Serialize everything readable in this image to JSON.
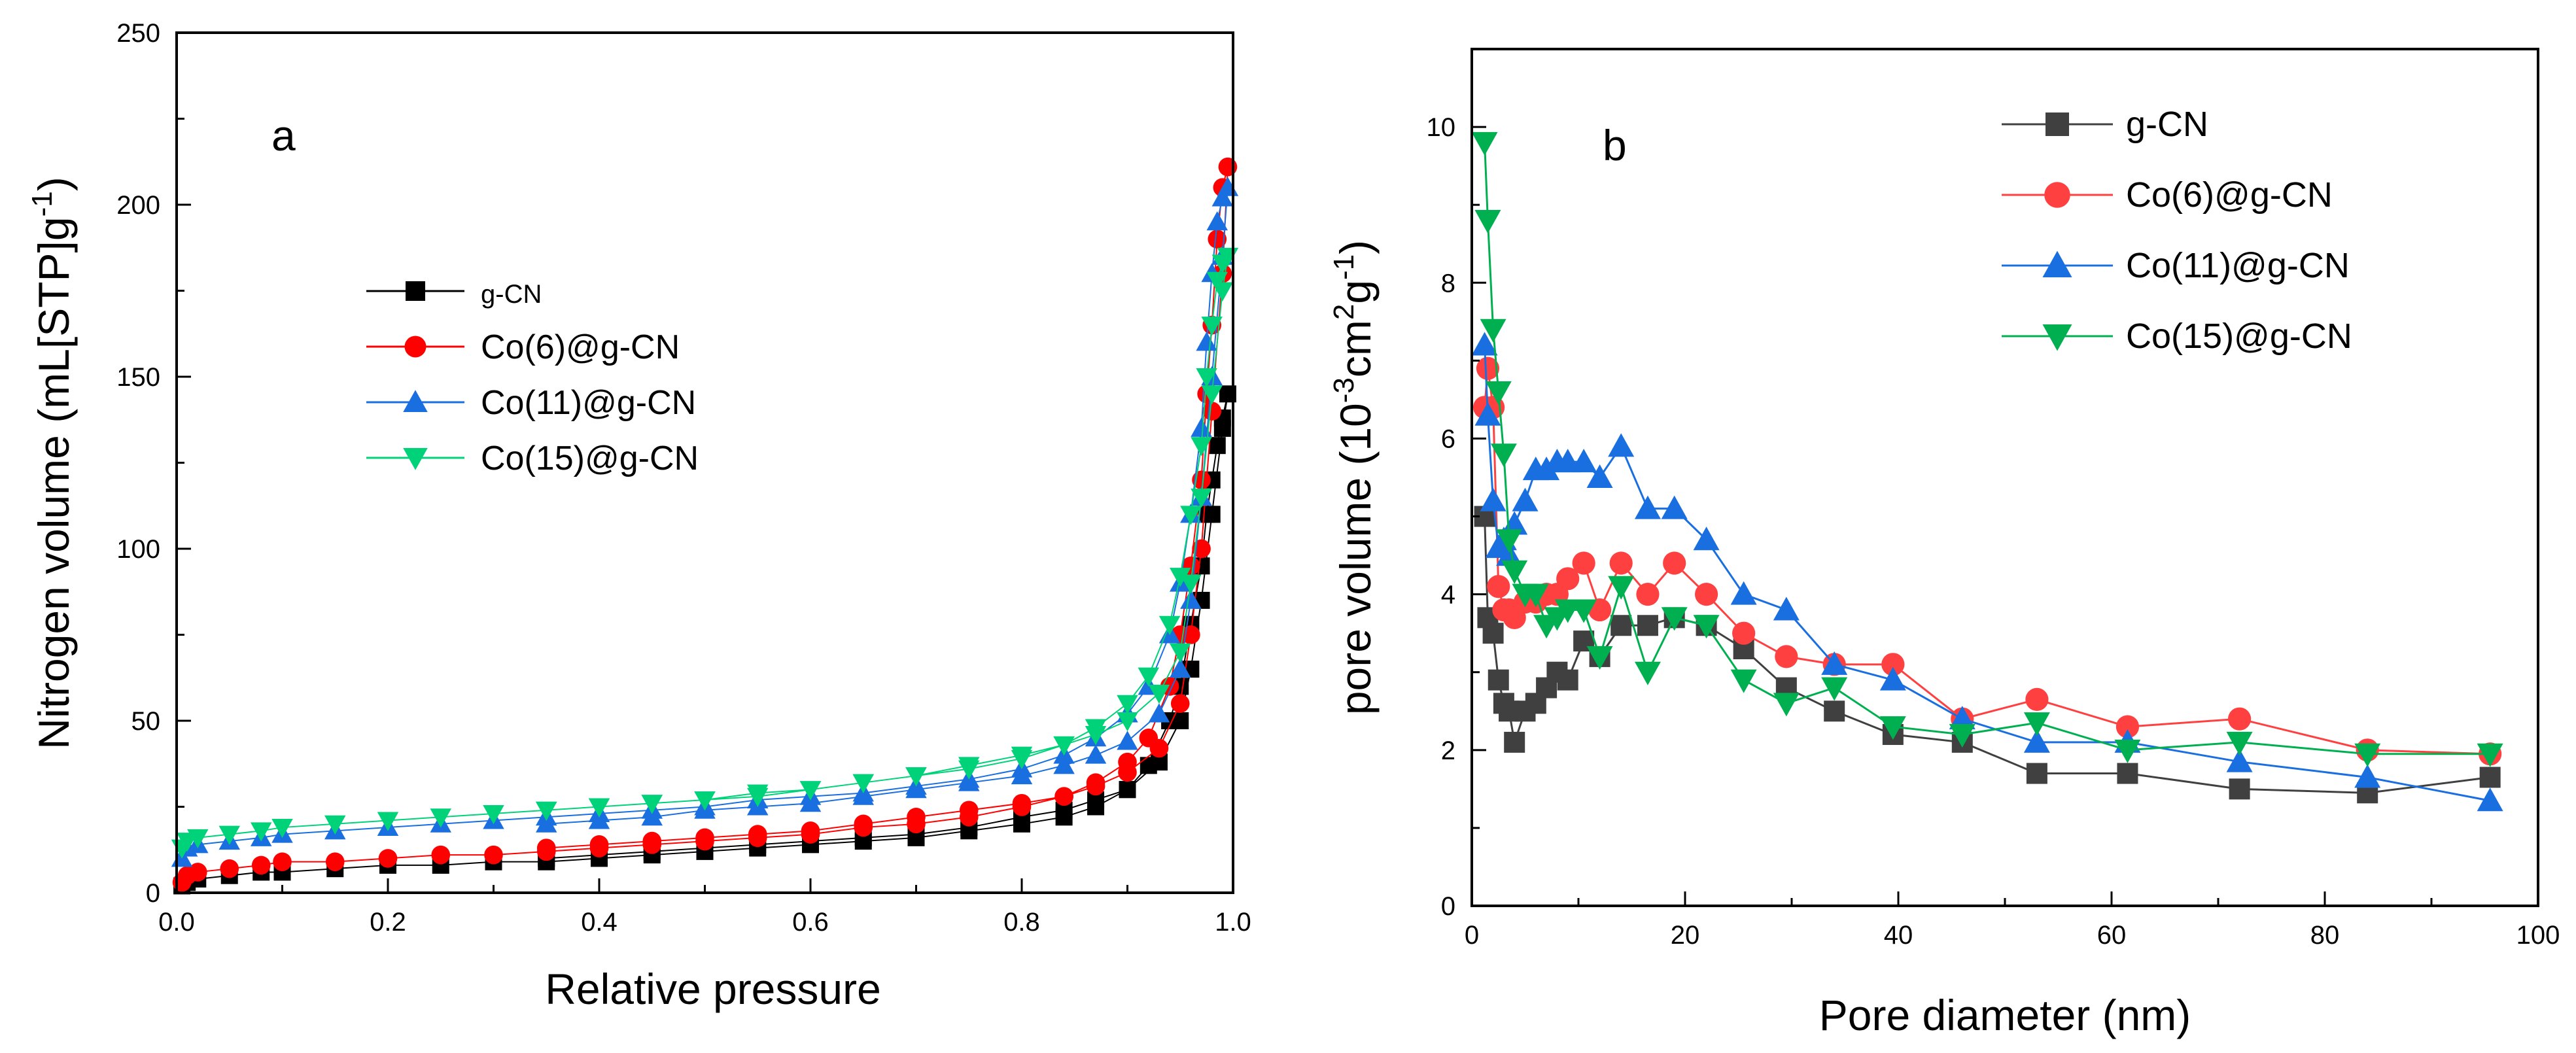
{
  "chart_data": [
    {
      "type": "scatter",
      "panel_label": "a",
      "xlabel": "Relative pressure",
      "ylabel": "Nitrogen volume (mL[STP]g-1)",
      "ylabel_parts": {
        "before": "Nitrogen volume (mL[STP]g",
        "sup": "-1",
        "after": ")"
      },
      "xlim": [
        0.0,
        1.0
      ],
      "ylim": [
        0,
        250
      ],
      "xticks": [
        "0.0",
        "0.2",
        "0.4",
        "0.6",
        "0.8",
        "1.0"
      ],
      "yticks": [
        "0",
        "50",
        "100",
        "150",
        "200",
        "250"
      ],
      "legend_position": "center-left",
      "series": [
        {
          "name": "g-CN",
          "color": "#000000",
          "marker": "square",
          "x": [
            0.005,
            0.01,
            0.02,
            0.05,
            0.08,
            0.1,
            0.15,
            0.2,
            0.25,
            0.3,
            0.35,
            0.4,
            0.45,
            0.5,
            0.55,
            0.6,
            0.65,
            0.7,
            0.75,
            0.8,
            0.84,
            0.87,
            0.9,
            0.92,
            0.94,
            0.95,
            0.96,
            0.97,
            0.975,
            0.98,
            0.985,
            0.99,
            0.995,
            0.99,
            0.98,
            0.97,
            0.96,
            0.95,
            0.93,
            0.9,
            0.87,
            0.84,
            0.8,
            0.75,
            0.7,
            0.65,
            0.6,
            0.55,
            0.5,
            0.45,
            0.4,
            0.35
          ],
          "y": [
            2,
            3,
            4,
            5,
            6,
            6,
            7,
            8,
            8,
            9,
            9,
            10,
            11,
            12,
            13,
            14,
            15,
            16,
            18,
            20,
            22,
            25,
            30,
            37,
            50,
            60,
            78,
            95,
            110,
            120,
            130,
            138,
            145,
            135,
            110,
            85,
            65,
            50,
            38,
            30,
            27,
            24,
            22,
            19,
            17,
            16,
            15,
            14,
            13,
            12,
            11,
            10
          ]
        },
        {
          "name": "Co(6)@g-CN",
          "color": "#ff0000",
          "marker": "circle",
          "x": [
            0.005,
            0.01,
            0.02,
            0.05,
            0.08,
            0.1,
            0.15,
            0.2,
            0.25,
            0.3,
            0.35,
            0.4,
            0.45,
            0.5,
            0.55,
            0.6,
            0.65,
            0.7,
            0.75,
            0.8,
            0.84,
            0.87,
            0.9,
            0.92,
            0.94,
            0.95,
            0.96,
            0.97,
            0.975,
            0.98,
            0.985,
            0.99,
            0.995,
            0.99,
            0.98,
            0.97,
            0.96,
            0.95,
            0.93,
            0.9,
            0.87,
            0.84,
            0.8,
            0.75,
            0.7,
            0.65,
            0.6,
            0.55,
            0.5,
            0.45,
            0.4,
            0.35
          ],
          "y": [
            3,
            5,
            6,
            7,
            8,
            9,
            9,
            10,
            11,
            11,
            12,
            13,
            14,
            15,
            16,
            17,
            19,
            20,
            22,
            25,
            28,
            32,
            38,
            45,
            60,
            75,
            95,
            120,
            145,
            165,
            190,
            205,
            211,
            180,
            140,
            100,
            75,
            55,
            42,
            35,
            31,
            28,
            26,
            24,
            22,
            20,
            18,
            17,
            16,
            15,
            14,
            13
          ]
        },
        {
          "name": "Co(11)@g-CN",
          "color": "#1a6fe0",
          "marker": "triangle-up",
          "x": [
            0.005,
            0.01,
            0.02,
            0.05,
            0.08,
            0.1,
            0.15,
            0.2,
            0.25,
            0.3,
            0.35,
            0.4,
            0.45,
            0.5,
            0.55,
            0.6,
            0.65,
            0.7,
            0.75,
            0.8,
            0.84,
            0.87,
            0.9,
            0.92,
            0.94,
            0.95,
            0.96,
            0.97,
            0.975,
            0.98,
            0.985,
            0.99,
            0.995,
            0.99,
            0.98,
            0.97,
            0.96,
            0.95,
            0.93,
            0.9,
            0.87,
            0.84,
            0.8,
            0.75,
            0.7,
            0.65,
            0.6,
            0.55,
            0.5,
            0.45,
            0.4,
            0.35
          ],
          "y": [
            10,
            13,
            14,
            15,
            16,
            17,
            18,
            19,
            20,
            21,
            22,
            23,
            24,
            25,
            27,
            28,
            29,
            31,
            33,
            36,
            40,
            45,
            52,
            60,
            75,
            90,
            110,
            135,
            160,
            180,
            195,
            202,
            205,
            185,
            150,
            115,
            85,
            65,
            52,
            44,
            40,
            37,
            34,
            32,
            30,
            28,
            26,
            25,
            24,
            22,
            21,
            20
          ]
        },
        {
          "name": "Co(15)@g-CN",
          "color": "#00d27a",
          "marker": "triangle-down",
          "x": [
            0.005,
            0.01,
            0.02,
            0.05,
            0.08,
            0.1,
            0.15,
            0.2,
            0.25,
            0.3,
            0.35,
            0.4,
            0.45,
            0.5,
            0.55,
            0.6,
            0.65,
            0.7,
            0.75,
            0.8,
            0.84,
            0.87,
            0.9,
            0.92,
            0.94,
            0.95,
            0.96,
            0.97,
            0.975,
            0.98,
            0.985,
            0.99,
            0.995,
            0.99,
            0.98,
            0.97,
            0.96,
            0.95,
            0.93,
            0.9,
            0.87,
            0.84,
            0.8,
            0.75,
            0.7,
            0.65,
            0.6,
            0.55,
            0.5,
            0.45,
            0.4,
            0.35
          ],
          "y": [
            13,
            15,
            16,
            17,
            18,
            19,
            20,
            21,
            22,
            23,
            24,
            25,
            26,
            27,
            29,
            30,
            32,
            34,
            36,
            39,
            43,
            48,
            55,
            63,
            78,
            92,
            110,
            130,
            150,
            165,
            178,
            183,
            185,
            175,
            145,
            115,
            90,
            70,
            58,
            50,
            46,
            43,
            40,
            37,
            34,
            32,
            30,
            28,
            27,
            26,
            25,
            24
          ]
        }
      ]
    },
    {
      "type": "line",
      "panel_label": "b",
      "xlabel": "Pore diameter (nm)",
      "ylabel": "pore volume (10-3cm2g-1)",
      "ylabel_parts": {
        "before": "pore volume (10",
        "sup1": "-3",
        "mid": "cm",
        "sup2": "2",
        "mid2": "g",
        "sup3": "-1",
        "after": ")"
      },
      "xlim": [
        0,
        100
      ],
      "ylim": [
        0,
        11
      ],
      "xticks": [
        "0",
        "20",
        "40",
        "60",
        "80",
        "100"
      ],
      "yticks": [
        "0",
        "2",
        "4",
        "6",
        "8",
        "10"
      ],
      "legend_position": "top-right",
      "series": [
        {
          "name": "g-CN",
          "color": "#404040",
          "marker": "square",
          "x": [
            1.2,
            1.5,
            2.0,
            2.5,
            3.0,
            3.5,
            4.0,
            5.0,
            6.0,
            7.0,
            8.0,
            9.0,
            10.5,
            12.0,
            14.0,
            16.5,
            19.0,
            22.0,
            25.5,
            29.5,
            34.0,
            39.5,
            46.0,
            53.0,
            61.5,
            72.0,
            84.0,
            95.5
          ],
          "y": [
            5.0,
            3.7,
            3.5,
            2.9,
            2.6,
            2.5,
            2.1,
            2.5,
            2.6,
            2.8,
            3.0,
            2.9,
            3.4,
            3.2,
            3.6,
            3.6,
            3.7,
            3.6,
            3.3,
            2.8,
            2.5,
            2.2,
            2.1,
            1.7,
            1.7,
            1.5,
            1.45,
            1.65
          ]
        },
        {
          "name": "Co(6)@g-CN",
          "color": "#ff4040",
          "marker": "circle",
          "x": [
            1.2,
            1.5,
            2.0,
            2.5,
            3.0,
            3.5,
            4.0,
            5.0,
            6.0,
            7.0,
            8.0,
            9.0,
            10.5,
            12.0,
            14.0,
            16.5,
            19.0,
            22.0,
            25.5,
            29.5,
            34.0,
            39.5,
            46.0,
            53.0,
            61.5,
            72.0,
            84.0,
            95.5
          ],
          "y": [
            6.4,
            6.9,
            6.4,
            4.1,
            3.8,
            3.8,
            3.7,
            3.9,
            3.9,
            4.0,
            4.0,
            4.2,
            4.4,
            3.8,
            4.4,
            4.0,
            4.4,
            4.0,
            3.5,
            3.2,
            3.1,
            3.1,
            2.4,
            2.65,
            2.3,
            2.4,
            2.0,
            1.95
          ]
        },
        {
          "name": "Co(11)@g-CN",
          "color": "#1a6fe0",
          "marker": "triangle-up",
          "x": [
            1.2,
            1.5,
            2.0,
            2.5,
            3.0,
            3.5,
            4.0,
            5.0,
            6.0,
            7.0,
            8.0,
            9.0,
            10.5,
            12.0,
            14.0,
            16.5,
            19.0,
            22.0,
            25.5,
            29.5,
            34.0,
            39.5,
            46.0,
            53.0,
            61.5,
            72.0,
            84.0,
            95.5
          ],
          "y": [
            7.2,
            6.3,
            5.2,
            4.6,
            4.7,
            4.5,
            4.9,
            5.2,
            5.6,
            5.6,
            5.7,
            5.7,
            5.7,
            5.5,
            5.9,
            5.1,
            5.1,
            4.7,
            4.0,
            3.8,
            3.1,
            2.9,
            2.4,
            2.1,
            2.1,
            1.85,
            1.65,
            1.35
          ]
        },
        {
          "name": "Co(15)@g-CN",
          "color": "#00b050",
          "marker": "triangle-down",
          "x": [
            1.2,
            1.5,
            2.0,
            2.5,
            3.0,
            3.5,
            4.0,
            5.0,
            6.0,
            7.0,
            8.0,
            9.0,
            10.5,
            12.0,
            14.0,
            16.5,
            19.0,
            22.0,
            25.5,
            29.5,
            34.0,
            39.5,
            46.0,
            53.0,
            61.5,
            72.0,
            84.0,
            95.5
          ],
          "y": [
            9.8,
            8.8,
            7.4,
            6.6,
            5.8,
            4.7,
            4.3,
            4.0,
            4.0,
            3.6,
            3.7,
            3.8,
            3.8,
            3.2,
            4.1,
            3.0,
            3.7,
            3.6,
            2.9,
            2.6,
            2.8,
            2.3,
            2.2,
            2.35,
            2.0,
            2.1,
            1.95,
            1.95
          ]
        }
      ]
    }
  ]
}
